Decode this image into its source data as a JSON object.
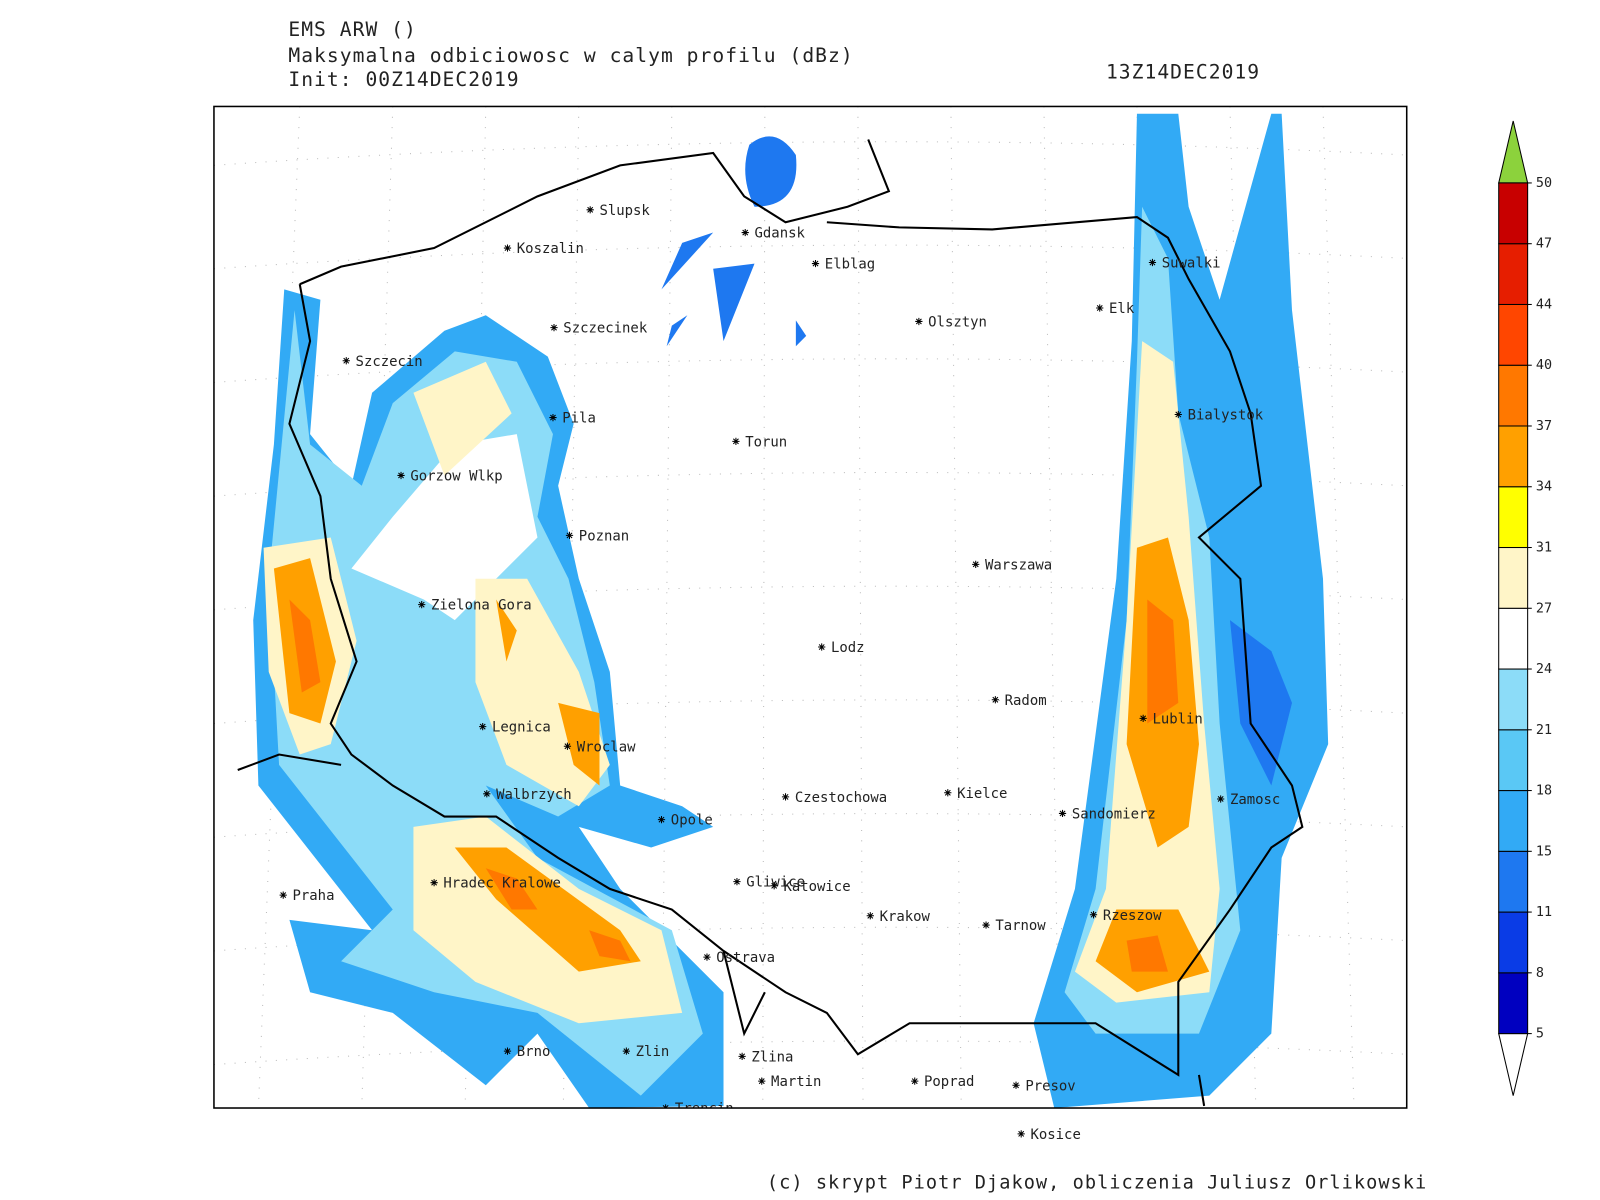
{
  "header": {
    "model": "EMS ARW ()",
    "field": "Maksymalna odbiciowosc w calym profilu (dBz)",
    "init": "Init: 00Z14DEC2019",
    "valid": "13Z14DEC2019"
  },
  "cities": [
    "Slupsk",
    "Koszalin",
    "Gdansk",
    "Elblag",
    "Suwalki",
    "Elk",
    "Olsztyn",
    "Szczecinek",
    "Szczecin",
    "Bialystok",
    "Pila",
    "Torun",
    "Gorzow Wlkp",
    "Poznan",
    "Warszawa",
    "Zielona Gora",
    "Lodz",
    "Radom",
    "Lublin",
    "Legnica",
    "Wroclaw",
    "Kielce",
    "Walbrzych",
    "Czestochowa",
    "Zamosc",
    "Opole",
    "Sandomierz",
    "Gliwice",
    "Katowice",
    "Hradec Kralowe",
    "Praha",
    "Krakow",
    "Rzeszow",
    "Tarnow",
    "Ostrava",
    "Brno",
    "Zlin",
    "Zlina",
    "Martin",
    "Poprad",
    "Presov",
    "Trencin",
    "Kosice"
  ],
  "colorbar": {
    "levels": [
      5,
      8,
      11,
      15,
      18,
      21,
      24,
      27,
      31,
      34,
      37,
      40,
      44,
      47,
      50
    ],
    "colors": [
      "#0000c0",
      "#0a3ce6",
      "#1e78f0",
      "#32aaf5",
      "#5ac8f5",
      "#8cdcf8",
      "#ffffff",
      "#fff5c8",
      "#ffff00",
      "#ffa000",
      "#ff7800",
      "#ff4600",
      "#e61e00",
      "#c80000"
    ],
    "under_color": "#ffffff",
    "over_color": "#8cd23c"
  },
  "credit": "(c) skrypt Piotr Djakow, obliczenia Juliusz Orlikowski"
}
